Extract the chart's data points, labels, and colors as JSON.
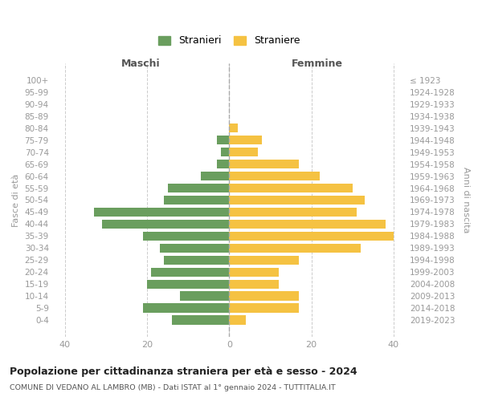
{
  "age_groups": [
    "0-4",
    "5-9",
    "10-14",
    "15-19",
    "20-24",
    "25-29",
    "30-34",
    "35-39",
    "40-44",
    "45-49",
    "50-54",
    "55-59",
    "60-64",
    "65-69",
    "70-74",
    "75-79",
    "80-84",
    "85-89",
    "90-94",
    "95-99",
    "100+"
  ],
  "birth_years": [
    "2019-2023",
    "2014-2018",
    "2009-2013",
    "2004-2008",
    "1999-2003",
    "1994-1998",
    "1989-1993",
    "1984-1988",
    "1979-1983",
    "1974-1978",
    "1969-1973",
    "1964-1968",
    "1959-1963",
    "1954-1958",
    "1949-1953",
    "1944-1948",
    "1939-1943",
    "1934-1938",
    "1929-1933",
    "1924-1928",
    "≤ 1923"
  ],
  "maschi": [
    14,
    21,
    12,
    20,
    19,
    16,
    17,
    21,
    31,
    33,
    16,
    15,
    7,
    3,
    2,
    3,
    0,
    0,
    0,
    0,
    0
  ],
  "femmine": [
    4,
    17,
    17,
    12,
    12,
    17,
    32,
    40,
    38,
    31,
    33,
    30,
    22,
    17,
    7,
    8,
    2,
    0,
    0,
    0,
    0
  ],
  "maschi_color": "#6a9e5e",
  "femmine_color": "#f5c242",
  "background_color": "#ffffff",
  "grid_color": "#cccccc",
  "title": "Popolazione per cittadinanza straniera per età e sesso - 2024",
  "subtitle": "COMUNE DI VEDANO AL LAMBRO (MB) - Dati ISTAT al 1° gennaio 2024 - TUTTITALIA.IT",
  "xlabel_left": "Maschi",
  "xlabel_right": "Femmine",
  "ylabel_left": "Fasce di età",
  "ylabel_right": "Anni di nascita",
  "legend_maschi": "Stranieri",
  "legend_femmine": "Straniere",
  "xlim": 43,
  "bar_height": 0.75
}
